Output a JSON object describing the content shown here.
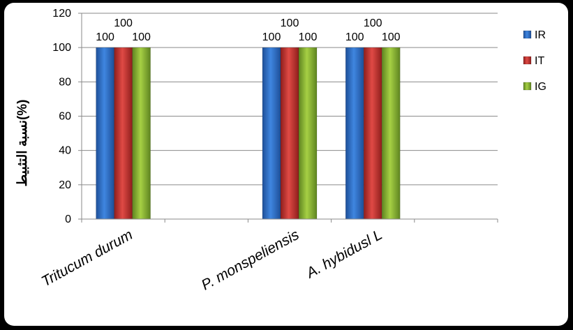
{
  "chart_data": {
    "type": "bar",
    "categories": [
      "Tritucum durum",
      "",
      "P. monspeliensis",
      "A. hybidusl L",
      ""
    ],
    "series": [
      {
        "name": "IR",
        "color": "#2E6FC9",
        "values": [
          100,
          null,
          100,
          100,
          null
        ],
        "labels": [
          "100",
          "",
          "100",
          "100",
          ""
        ]
      },
      {
        "name": "IT",
        "color": "#C8302E",
        "values": [
          100,
          null,
          100,
          100,
          null
        ],
        "labels": [
          "100",
          "",
          "100",
          "100",
          ""
        ]
      },
      {
        "name": "IG",
        "color": "#8DB833",
        "values": [
          100,
          null,
          100,
          100,
          null
        ],
        "labels": [
          "100",
          "",
          "100",
          "100",
          ""
        ]
      }
    ],
    "ylabel": "نسبة التثبيط(%)",
    "xlabel": "",
    "title": "",
    "ylim": [
      0,
      120
    ],
    "yticks": [
      0,
      20,
      40,
      60,
      80,
      100,
      120
    ],
    "grid": true,
    "legend": "right"
  }
}
